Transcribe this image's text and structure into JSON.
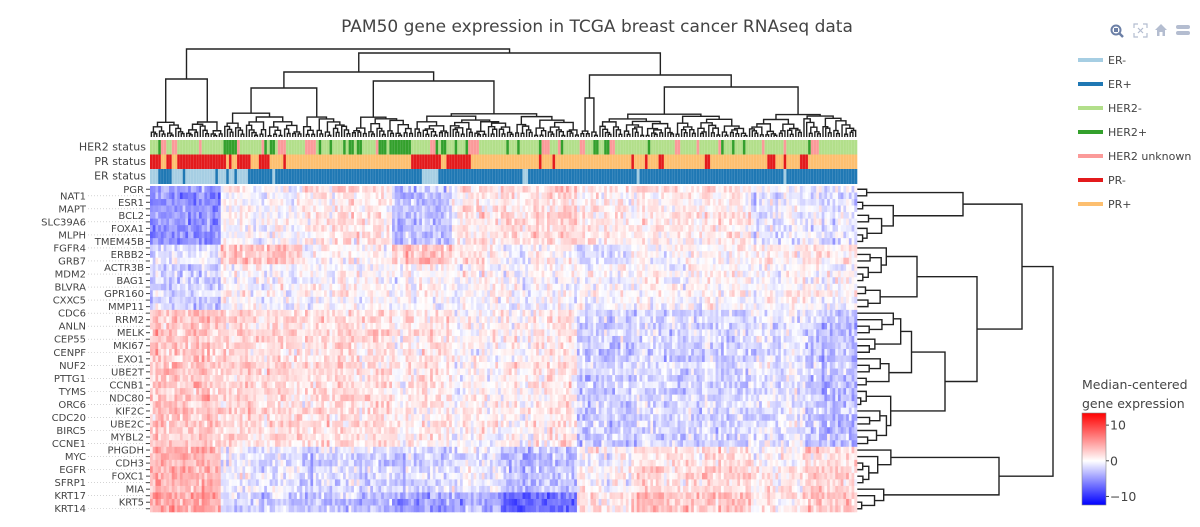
{
  "modebar": {
    "icons": [
      "zoom-icon",
      "autoscale-icon",
      "home-icon",
      "plotly-logo-icon"
    ]
  },
  "legend": {
    "items": [
      {
        "label": "ER-",
        "color": "#a6cee3"
      },
      {
        "label": "ER+",
        "color": "#1f78b4"
      },
      {
        "label": "HER2-",
        "color": "#b2df8a"
      },
      {
        "label": "HER2+",
        "color": "#33a02c"
      },
      {
        "label": "HER2 unknown",
        "color": "#fb9a99"
      },
      {
        "label": "PR-",
        "color": "#e31a1c"
      },
      {
        "label": "PR+",
        "color": "#fdbf6f"
      }
    ]
  },
  "colorbar": {
    "title_lines": [
      "Median-centered",
      "gene expression"
    ],
    "ticks": [
      {
        "label": "10",
        "value": 10
      },
      {
        "label": "0",
        "value": 0
      },
      {
        "label": "−10",
        "value": -10
      }
    ]
  },
  "chart_data": {
    "type": "heatmap",
    "title": "PAM50 gene expression in TCGA breast cancer RNAseq data",
    "colorscale": {
      "low": "#0000ff",
      "mid": "#ffffff",
      "high": "#ff0000"
    },
    "zrange": [
      -12.4,
      13.4
    ],
    "n_samples": 260,
    "genes": [
      "PGR",
      "NAT1",
      "ESR1",
      "MAPT",
      "BCL2",
      "SLC39A6",
      "FOXA1",
      "MLPH",
      "TMEM45B",
      "FGFR4",
      "ERBB2",
      "GRB7",
      "ACTR3B",
      "MDM2",
      "BAG1",
      "BLVRA",
      "GPR160",
      "CXXC5",
      "MMP11",
      "CDC6",
      "RRM2",
      "ANLN",
      "MELK",
      "CEP55",
      "MKI67",
      "CENPF",
      "EXO1",
      "NUF2",
      "UBE2T",
      "PTTG1",
      "CCNB1",
      "TYMS",
      "NDC80",
      "ORC6",
      "KIF2C",
      "CDC20",
      "UBE2C",
      "BIRC5",
      "MYBL2",
      "CCNE1",
      "PHGDH",
      "MYC",
      "CDH3",
      "EGFR",
      "FOXC1",
      "SFRP1",
      "MIA",
      "KRT17",
      "KRT5",
      "KRT14"
    ],
    "annotation_tracks": [
      {
        "name": "HER2 status",
        "runs": [
          [
            "HER2-",
            0
          ],
          [
            "HER2+",
            3
          ],
          [
            "HER2 unknown",
            4
          ],
          [
            "HER2-",
            6
          ],
          [
            "HER2 unknown",
            8
          ],
          [
            "HER2-",
            10
          ],
          [
            "HER2 unknown",
            18
          ],
          [
            "HER2-",
            19
          ],
          [
            "HER2+",
            27
          ],
          [
            "HER2 unknown",
            32
          ],
          [
            "HER2-",
            33
          ],
          [
            "HER2 unknown",
            41
          ],
          [
            "HER2+",
            42
          ],
          [
            "HER2-",
            43
          ],
          [
            "HER2+",
            44
          ],
          [
            "HER2-",
            46
          ],
          [
            "HER2 unknown",
            47
          ],
          [
            "HER2-",
            50
          ],
          [
            "HER2 unknown",
            57
          ],
          [
            "HER2-",
            61
          ],
          [
            "HER2+",
            62
          ],
          [
            "HER2-",
            63
          ],
          [
            "HER2+",
            66
          ],
          [
            "HER2-",
            67
          ],
          [
            "HER2+",
            71
          ],
          [
            "HER2-",
            72
          ],
          [
            "HER2+",
            73
          ],
          [
            "HER2-",
            75
          ],
          [
            "HER2+",
            76
          ],
          [
            "HER2-",
            78
          ],
          [
            "HER2 unknown",
            83
          ],
          [
            "HER2+",
            84
          ],
          [
            "HER2-",
            87
          ],
          [
            "HER2+",
            88
          ],
          [
            "HER2-",
            96
          ],
          [
            "HER2 unknown",
            103
          ],
          [
            "HER2+",
            105
          ],
          [
            "HER2-",
            106
          ],
          [
            "HER2+",
            107
          ],
          [
            "HER2-",
            109
          ],
          [
            "HER2+",
            112
          ],
          [
            "HER2-",
            113
          ],
          [
            "HER2+",
            116
          ],
          [
            "HER2 unknown",
            117
          ],
          [
            "HER2-",
            121
          ],
          [
            "HER2+",
            131
          ],
          [
            "HER2-",
            132
          ],
          [
            "HER2+",
            135
          ],
          [
            "HER2-",
            136
          ],
          [
            "HER2+",
            143
          ],
          [
            "HER2 unknown",
            144
          ],
          [
            "HER2-",
            147
          ],
          [
            "HER2 unknown",
            150
          ],
          [
            "HER2+",
            151
          ],
          [
            "HER2-",
            152
          ],
          [
            "HER2 unknown",
            158
          ],
          [
            "HER2-",
            160
          ],
          [
            "HER2+",
            163
          ],
          [
            "HER2-",
            165
          ],
          [
            "HER2+",
            167
          ],
          [
            "HER2 unknown",
            169
          ],
          [
            "HER2-",
            171
          ],
          [
            "HER2+",
            183
          ],
          [
            "HER2-",
            184
          ],
          [
            "HER2 unknown",
            193
          ],
          [
            "HER2-",
            195
          ],
          [
            "HER2 unknown",
            201
          ],
          [
            "HER2-",
            202
          ],
          [
            "HER2 unknown",
            209
          ],
          [
            "HER2+",
            210
          ],
          [
            "HER2-",
            211
          ],
          [
            "HER2+",
            214
          ],
          [
            "HER2-",
            215
          ],
          [
            "HER2+",
            218
          ],
          [
            "HER2-",
            219
          ],
          [
            "HER2 unknown",
            225
          ],
          [
            "HER2-",
            226
          ],
          [
            "HER2 unknown",
            233
          ],
          [
            "HER2-",
            234
          ],
          [
            "HER2+",
            242
          ],
          [
            "HER2 unknown",
            243
          ],
          [
            "HER2-",
            246
          ]
        ]
      },
      {
        "name": "PR status",
        "runs": [
          [
            "PR-",
            0
          ],
          [
            "PR+",
            4
          ],
          [
            "PR-",
            6
          ],
          [
            "PR+",
            8
          ],
          [
            "PR-",
            10
          ],
          [
            "PR+",
            28
          ],
          [
            "PR-",
            29
          ],
          [
            "PR+",
            30
          ],
          [
            "PR-",
            32
          ],
          [
            "PR+",
            37
          ],
          [
            "PR-",
            40
          ],
          [
            "PR+",
            44
          ],
          [
            "PR-",
            49
          ],
          [
            "PR+",
            50
          ],
          [
            "PR-",
            96
          ],
          [
            "PR+",
            107
          ],
          [
            "PR-",
            109
          ],
          [
            "PR+",
            118
          ],
          [
            "PR-",
            143
          ],
          [
            "PR+",
            144
          ],
          [
            "PR-",
            148
          ],
          [
            "PR+",
            149
          ],
          [
            "PR-",
            177
          ],
          [
            "PR+",
            178
          ],
          [
            "PR-",
            182
          ],
          [
            "PR+",
            183
          ],
          [
            "PR-",
            187
          ],
          [
            "PR+",
            189
          ],
          [
            "PR-",
            204
          ],
          [
            "PR+",
            206
          ],
          [
            "PR-",
            227
          ],
          [
            "PR+",
            230
          ],
          [
            "PR-",
            233
          ],
          [
            "PR+",
            234
          ],
          [
            "PR-",
            239
          ],
          [
            "PR+",
            242
          ]
        ]
      },
      {
        "name": "ER status",
        "runs": [
          [
            "ER-",
            0
          ],
          [
            "ER+",
            3
          ],
          [
            "ER-",
            8
          ],
          [
            "ER+",
            12
          ],
          [
            "ER-",
            13
          ],
          [
            "ER+",
            24
          ],
          [
            "ER-",
            25
          ],
          [
            "ER+",
            28
          ],
          [
            "ER-",
            29
          ],
          [
            "ER+",
            31
          ],
          [
            "ER-",
            32
          ],
          [
            "ER+",
            36
          ],
          [
            "ER-",
            45
          ],
          [
            "ER+",
            46
          ],
          [
            "ER-",
            100
          ],
          [
            "ER+",
            106
          ],
          [
            "ER-",
            137
          ],
          [
            "ER+",
            139
          ],
          [
            "ER-",
            179
          ],
          [
            "ER+",
            180
          ],
          [
            "ER-",
            233
          ],
          [
            "ER+",
            234
          ]
        ]
      }
    ],
    "approx_block_means": {
      "sample_segment_starts": [
        0,
        26,
        56,
        89,
        111,
        129,
        157,
        177,
        221,
        241
      ],
      "gene_groups": [
        {
          "genes": [
            0,
            8
          ],
          "means": [
            -5,
            0,
            1,
            -3,
            1,
            2,
            1,
            1,
            -1,
            -1
          ]
        },
        {
          "genes": [
            9,
            11
          ],
          "means": [
            -1,
            3,
            0,
            3,
            1,
            0,
            -1.5,
            0,
            1,
            1
          ]
        },
        {
          "genes": [
            12,
            18
          ],
          "means": [
            -2,
            0,
            0,
            0,
            0,
            0,
            0,
            0,
            0,
            0
          ]
        },
        {
          "genes": [
            19,
            39
          ],
          "means": [
            3,
            2,
            1.5,
            1,
            0,
            1,
            -2.5,
            -2,
            -1,
            -3
          ]
        },
        {
          "genes": [
            40,
            46
          ],
          "means": [
            4,
            -1,
            -2,
            -2,
            -1,
            -3,
            0,
            1.5,
            0.5,
            2
          ]
        },
        {
          "genes": [
            47,
            49
          ],
          "means": [
            5,
            -2,
            -3,
            -5,
            -4,
            -7,
            1,
            3,
            1,
            3
          ]
        }
      ]
    }
  }
}
